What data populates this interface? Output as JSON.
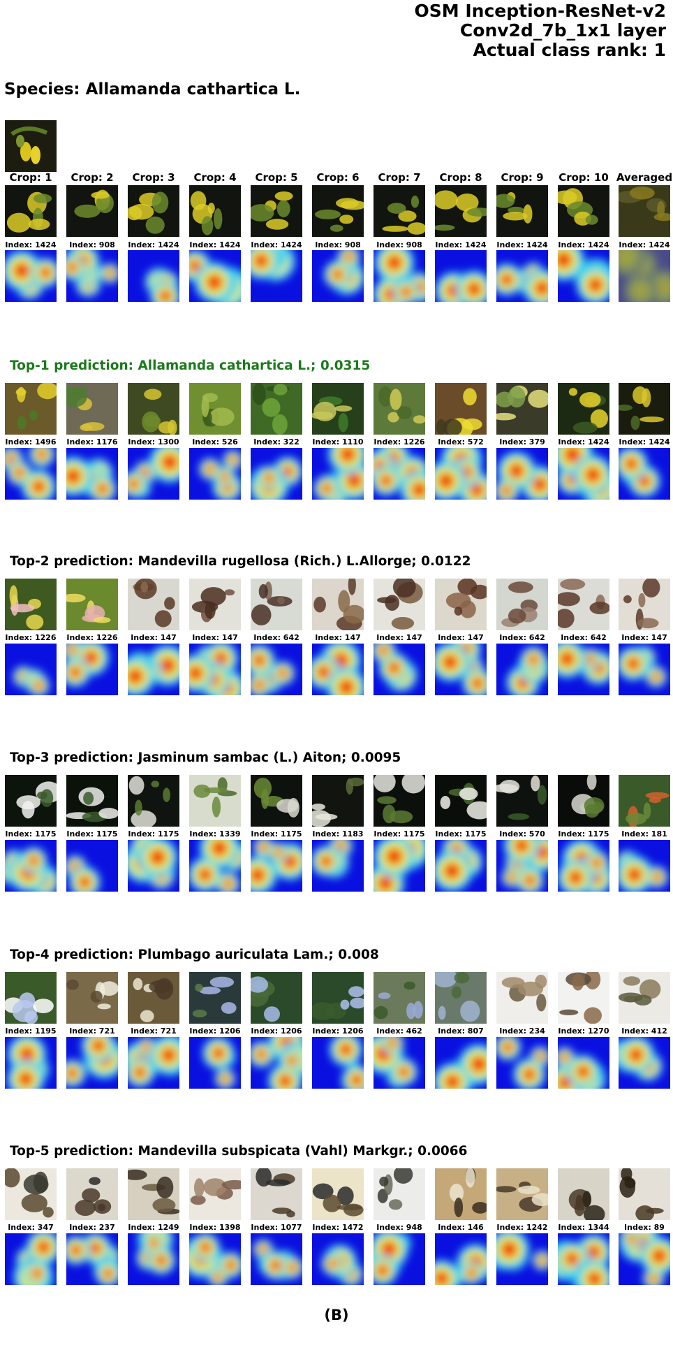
{
  "header": {
    "model": "OSM Inception-ResNet-v2",
    "layer": "Conv2d_7b_1x1 layer",
    "rank": "Actual class rank: 1"
  },
  "species_title": "Species: Allamanda cathartica L.",
  "crop_labels": [
    "Crop: 1",
    "Crop: 2",
    "Crop: 3",
    "Crop: 4",
    "Crop: 5",
    "Crop: 6",
    "Crop: 7",
    "Crop: 8",
    "Crop: 9",
    "Crop: 10",
    "Averaged"
  ],
  "query_indices": [
    "Index: 1424",
    "Index: 908",
    "Index: 1424",
    "Index: 1424",
    "Index: 1424",
    "Index: 908",
    "Index: 908",
    "Index: 1424",
    "Index: 1424",
    "Index: 1424",
    "Index: 1424"
  ],
  "predictions": [
    {
      "title": "Top-1 prediction: Allamanda cathartica L.; 0.0315",
      "color": "#1b7a1b",
      "indices": [
        "Index: 1496",
        "Index: 1176",
        "Index: 1300",
        "Index: 526",
        "Index: 322",
        "Index: 1110",
        "Index: 1226",
        "Index: 572",
        "Index: 379",
        "Index: 1424",
        "Index: 1424"
      ]
    },
    {
      "title": "Top-2 prediction: Mandevilla rugellosa (Rich.) L.Allorge; 0.0122",
      "color": "#000000",
      "indices": [
        "Index: 1226",
        "Index: 1226",
        "Index: 147",
        "Index: 147",
        "Index: 642",
        "Index: 147",
        "Index: 147",
        "Index: 147",
        "Index: 642",
        "Index: 642",
        "Index: 147"
      ]
    },
    {
      "title": "Top-3 prediction: Jasminum sambac (L.) Aiton; 0.0095",
      "color": "#000000",
      "indices": [
        "Index: 1175",
        "Index: 1175",
        "Index: 1175",
        "Index: 1339",
        "Index: 1175",
        "Index: 1183",
        "Index: 1175",
        "Index: 1175",
        "Index: 570",
        "Index: 1175",
        "Index: 181"
      ]
    },
    {
      "title": "Top-4 prediction: Plumbago auriculata Lam.; 0.008",
      "color": "#000000",
      "indices": [
        "Index: 1195",
        "Index: 721",
        "Index: 721",
        "Index: 1206",
        "Index: 1206",
        "Index: 1206",
        "Index: 462",
        "Index: 807",
        "Index: 234",
        "Index: 1270",
        "Index: 412"
      ]
    },
    {
      "title": "Top-5 prediction: Mandevilla subspicata (Vahl) Markgr.; 0.0066",
      "color": "#000000",
      "indices": [
        "Index: 347",
        "Index: 237",
        "Index: 1249",
        "Index: 1398",
        "Index: 1077",
        "Index: 1472",
        "Index: 948",
        "Index: 146",
        "Index: 1242",
        "Index: 1344",
        "Index: 89"
      ]
    }
  ],
  "footer": "(B)"
}
